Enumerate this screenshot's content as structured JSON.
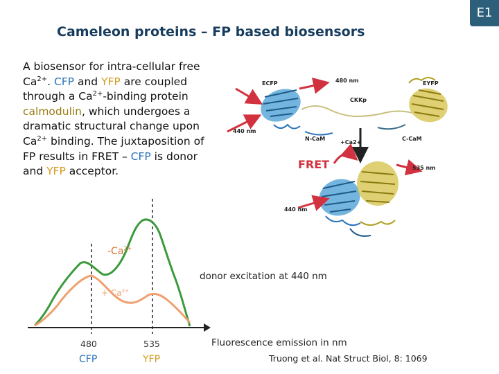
{
  "slide_id": "E1",
  "title": "Cameleon proteins – FP based biosensors",
  "description": {
    "t1": "A biosensor for intra-cellular free Ca",
    "s1": "2+",
    "t2": ". ",
    "cfp1": "CFP",
    "t3": " and ",
    "yfp1": "YFP",
    "t4": " are coupled through a Ca",
    "s2": "2+",
    "t5": "-binding protein ",
    "calmodulin": "calmodulin",
    "t6": ", which undergoes a dramatic structural change upon Ca",
    "s3": "2+",
    "t7": " binding. The juxtaposition of FP results in FRET – ",
    "cfp2": "CFP",
    "t8": " is donor and ",
    "yfp2": "YFP",
    "t9": " acceptor."
  },
  "structure_labels": {
    "ecfp": "ECFP",
    "eyfp": "EYFP",
    "nm480": "480 nm",
    "ckkp": "CKKp",
    "nm440_top": "440 nm",
    "ncam": "N-CaM",
    "ca2": "+Ca2+",
    "ccam": "C-CaM",
    "fret": "FRET",
    "nm535": "535 nm",
    "nm440_bottom": "440 nm"
  },
  "chart": {
    "minus_ca": "-Ca",
    "minus_ca_sup": "2+",
    "plus_ca": "+ Ca",
    "plus_ca_sup": "2+",
    "excitation": "donor excitation at 440 nm",
    "x_axis_title": "Fluorescence emission in nm",
    "tick_480": "480",
    "tick_535": "535",
    "cfp": "CFP",
    "yfp": "YFP"
  },
  "citation": "Truong et al. Nat Struct Biol, 8: 1069",
  "colors": {
    "title": "#173c5e",
    "badge": "#2e5f7a",
    "cfp": "#2a73b8",
    "yfp": "#d49a1c",
    "minus_ca_curve": "#3a9a3a",
    "plus_ca_curve": "#f0a070",
    "fret": "#d2323f"
  }
}
